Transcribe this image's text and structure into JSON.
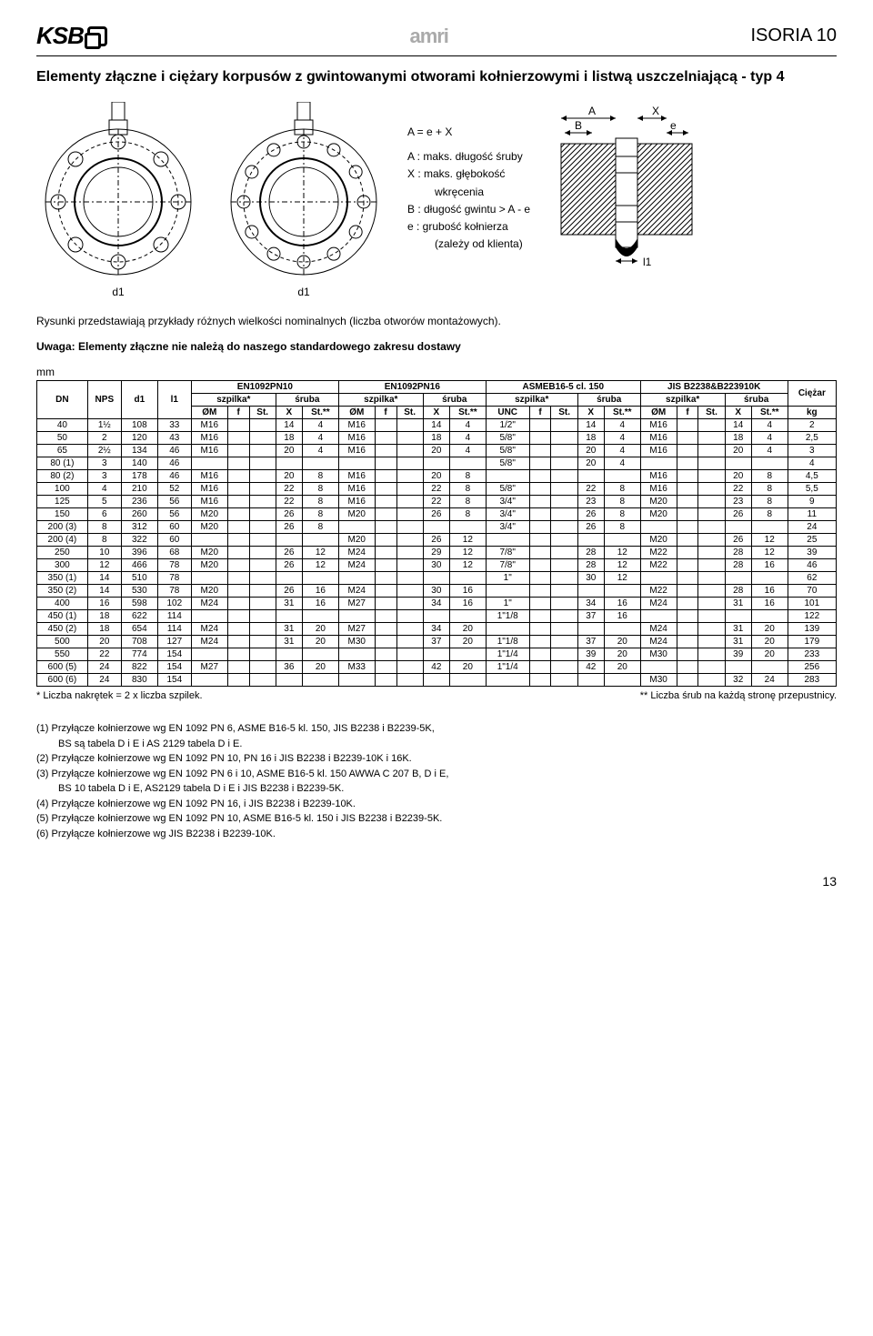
{
  "header": {
    "logo_left": "KSB",
    "logo_center": "amri",
    "title_right": "ISORIA 10"
  },
  "section_title": "Elementy złączne i ciężary korpusów z gwintowanymi otworami kołnierzowymi i listwą uszczelniającą - typ 4",
  "diagram": {
    "d1_label": "d1",
    "eq": "A = e + X",
    "lines": [
      "A : maks. długość śruby",
      "X : maks. głębokość",
      "wkręcenia",
      "B : długość gwintu > A - e",
      "e : grubość kołnierza",
      "(zależy od klienta)"
    ],
    "side_labels": {
      "A": "A",
      "B": "B",
      "X": "X",
      "e": "e",
      "l1": "l1"
    }
  },
  "caption": "Rysunki przedstawiają przykłady różnych wielkości nominalnych (liczba otworów montażowych).",
  "note_bold": "Uwaga: Elementy złączne nie należą do naszego standardowego zakresu dostawy",
  "unit_label": "mm",
  "table": {
    "head_groups": [
      "EN1092PN10",
      "EN1092PN16",
      "ASMEB16-5 cl. 150",
      "JIS B2238&B223910K"
    ],
    "sub_szpilka": "szpilka*",
    "sub_sruba": "śruba",
    "weight": "Ciężar",
    "weight_unit": "kg",
    "col_DN": "DN",
    "col_NPS": "NPS",
    "col_d1": "d1",
    "col_l1": "l1",
    "col_OM": "ØM",
    "col_f": "f",
    "col_St": "St.",
    "col_X": "X",
    "col_Stss": "St.**",
    "col_UNC": "UNC",
    "rows": [
      [
        "40",
        "1½",
        "108",
        "33",
        "M16",
        "",
        "",
        "14",
        "4",
        "M16",
        "",
        "",
        "14",
        "4",
        "1/2\"",
        "",
        "",
        "14",
        "4",
        "M16",
        "",
        "",
        "14",
        "4",
        "2"
      ],
      [
        "50",
        "2",
        "120",
        "43",
        "M16",
        "",
        "",
        "18",
        "4",
        "M16",
        "",
        "",
        "18",
        "4",
        "5/8\"",
        "",
        "",
        "18",
        "4",
        "M16",
        "",
        "",
        "18",
        "4",
        "2,5"
      ],
      [
        "65",
        "2½",
        "134",
        "46",
        "M16",
        "",
        "",
        "20",
        "4",
        "M16",
        "",
        "",
        "20",
        "4",
        "5/8\"",
        "",
        "",
        "20",
        "4",
        "M16",
        "",
        "",
        "20",
        "4",
        "3"
      ],
      [
        "80 (1)",
        "3",
        "140",
        "46",
        "",
        "",
        "",
        "",
        "",
        "",
        "",
        "",
        "",
        "",
        "5/8\"",
        "",
        "",
        "20",
        "4",
        "",
        "",
        "",
        "",
        "",
        "4"
      ],
      [
        "80 (2)",
        "3",
        "178",
        "46",
        "M16",
        "",
        "",
        "20",
        "8",
        "M16",
        "",
        "",
        "20",
        "8",
        "",
        "",
        "",
        "",
        "",
        "M16",
        "",
        "",
        "20",
        "8",
        "4,5"
      ],
      [
        "100",
        "4",
        "210",
        "52",
        "M16",
        "",
        "",
        "22",
        "8",
        "M16",
        "",
        "",
        "22",
        "8",
        "5/8\"",
        "",
        "",
        "22",
        "8",
        "M16",
        "",
        "",
        "22",
        "8",
        "5,5"
      ],
      [
        "125",
        "5",
        "236",
        "56",
        "M16",
        "",
        "",
        "22",
        "8",
        "M16",
        "",
        "",
        "22",
        "8",
        "3/4\"",
        "",
        "",
        "23",
        "8",
        "M20",
        "",
        "",
        "23",
        "8",
        "9"
      ],
      [
        "150",
        "6",
        "260",
        "56",
        "M20",
        "",
        "",
        "26",
        "8",
        "M20",
        "",
        "",
        "26",
        "8",
        "3/4\"",
        "",
        "",
        "26",
        "8",
        "M20",
        "",
        "",
        "26",
        "8",
        "11"
      ],
      [
        "200 (3)",
        "8",
        "312",
        "60",
        "M20",
        "",
        "",
        "26",
        "8",
        "",
        "",
        "",
        "",
        "",
        "3/4\"",
        "",
        "",
        "26",
        "8",
        "",
        "",
        "",
        "",
        "",
        "24"
      ],
      [
        "200 (4)",
        "8",
        "322",
        "60",
        "",
        "",
        "",
        "",
        "",
        "M20",
        "",
        "",
        "26",
        "12",
        "",
        "",
        "",
        "",
        "",
        "M20",
        "",
        "",
        "26",
        "12",
        "25"
      ],
      [
        "250",
        "10",
        "396",
        "68",
        "M20",
        "",
        "",
        "26",
        "12",
        "M24",
        "",
        "",
        "29",
        "12",
        "7/8\"",
        "",
        "",
        "28",
        "12",
        "M22",
        "",
        "",
        "28",
        "12",
        "39"
      ],
      [
        "300",
        "12",
        "466",
        "78",
        "M20",
        "",
        "",
        "26",
        "12",
        "M24",
        "",
        "",
        "30",
        "12",
        "7/8\"",
        "",
        "",
        "28",
        "12",
        "M22",
        "",
        "",
        "28",
        "16",
        "46"
      ],
      [
        "350 (1)",
        "14",
        "510",
        "78",
        "",
        "",
        "",
        "",
        "",
        "",
        "",
        "",
        "",
        "",
        "1\"",
        "",
        "",
        "30",
        "12",
        "",
        "",
        "",
        "",
        "",
        "62"
      ],
      [
        "350 (2)",
        "14",
        "530",
        "78",
        "M20",
        "",
        "",
        "26",
        "16",
        "M24",
        "",
        "",
        "30",
        "16",
        "",
        "",
        "",
        "",
        "",
        "M22",
        "",
        "",
        "28",
        "16",
        "70"
      ],
      [
        "400",
        "16",
        "598",
        "102",
        "M24",
        "",
        "",
        "31",
        "16",
        "M27",
        "",
        "",
        "34",
        "16",
        "1\"",
        "",
        "",
        "34",
        "16",
        "M24",
        "",
        "",
        "31",
        "16",
        "101"
      ],
      [
        "450 (1)",
        "18",
        "622",
        "114",
        "",
        "",
        "",
        "",
        "",
        "",
        "",
        "",
        "",
        "",
        "1\"1/8",
        "",
        "",
        "37",
        "16",
        "",
        "",
        "",
        "",
        "",
        "122"
      ],
      [
        "450 (2)",
        "18",
        "654",
        "114",
        "M24",
        "",
        "",
        "31",
        "20",
        "M27",
        "",
        "",
        "34",
        "20",
        "",
        "",
        "",
        "",
        "",
        "M24",
        "",
        "",
        "31",
        "20",
        "139"
      ],
      [
        "500",
        "20",
        "708",
        "127",
        "M24",
        "",
        "",
        "31",
        "20",
        "M30",
        "",
        "",
        "37",
        "20",
        "1\"1/8",
        "",
        "",
        "37",
        "20",
        "M24",
        "",
        "",
        "31",
        "20",
        "179"
      ],
      [
        "550",
        "22",
        "774",
        "154",
        "",
        "",
        "",
        "",
        "",
        "",
        "",
        "",
        "",
        "",
        "1\"1/4",
        "",
        "",
        "39",
        "20",
        "M30",
        "",
        "",
        "39",
        "20",
        "233"
      ],
      [
        "600 (5)",
        "24",
        "822",
        "154",
        "M27",
        "",
        "",
        "36",
        "20",
        "M33",
        "",
        "",
        "42",
        "20",
        "1\"1/4",
        "",
        "",
        "42",
        "20",
        "",
        "",
        "",
        "",
        "",
        "256"
      ],
      [
        "600 (6)",
        "24",
        "830",
        "154",
        "",
        "",
        "",
        "",
        "",
        "",
        "",
        "",
        "",
        "",
        "",
        "",
        "",
        "",
        "",
        "M30",
        "",
        "",
        "32",
        "24",
        "283"
      ]
    ],
    "foot_left": "* Liczba nakrętek = 2 x liczba szpilek.",
    "foot_right": "** Liczba śrub na każdą stronę przepustnicy."
  },
  "notes": [
    "(1) Przyłącze kołnierzowe wg EN 1092 PN 6, ASME B16-5 kl. 150, JIS B2238 i B2239-5K,",
    "BS są tabela D i E i AS 2129 tabela D i E.",
    "(2) Przyłącze kołnierzowe wg EN 1092 PN 10, PN 16 i JIS B2238 i B2239-10K i 16K.",
    "(3) Przyłącze kołnierzowe wg EN 1092 PN 6 i 10, ASME B16-5 kl. 150 AWWA C 207 B, D i E,",
    "BS 10 tabela D i E, AS2129 tabela D i E i JIS B2238 i B2239-5K.",
    "(4) Przyłącze kołnierzowe wg EN 1092 PN 16, i JIS B2238 i B2239-10K.",
    "(5) Przyłącze kołnierzowe wg EN 1092 PN 10, ASME B16-5 kl. 150 i JIS B2238 i B2239-5K.",
    "(6) Przyłącze kołnierzowe wg JIS B2238 i B2239-10K."
  ],
  "page_number": "13"
}
